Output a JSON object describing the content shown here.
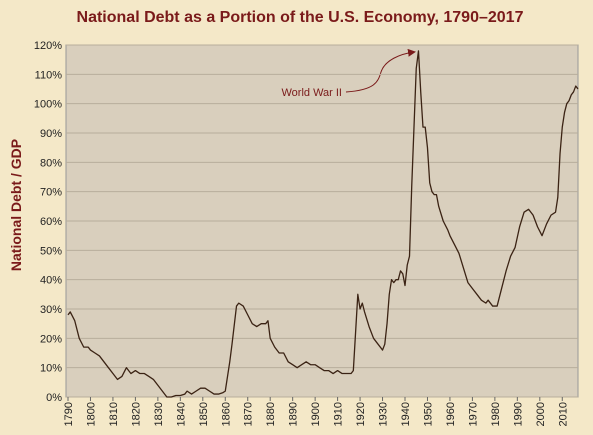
{
  "chart_data": {
    "type": "line",
    "title": "National Debt as a Portion of the U.S. Economy, 1790–2017",
    "y_label": "National Debt / GDP",
    "annotation": "World War II",
    "color": "#3b2314",
    "grid": true,
    "xlim": [
      1790,
      2017
    ],
    "ylim": [
      0,
      120
    ],
    "xticks": [
      1790,
      1800,
      1810,
      1820,
      1830,
      1840,
      1850,
      1860,
      1870,
      1880,
      1890,
      1900,
      1910,
      1920,
      1930,
      1940,
      1950,
      1960,
      1970,
      1980,
      1990,
      2000,
      2010
    ],
    "yticks": [
      {
        "value": 0,
        "label": "0%"
      },
      {
        "value": 10,
        "label": "10%"
      },
      {
        "value": 20,
        "label": "20%"
      },
      {
        "value": 30,
        "label": "30%"
      },
      {
        "value": 40,
        "label": "40%"
      },
      {
        "value": 50,
        "label": "50%"
      },
      {
        "value": 60,
        "label": "60%"
      },
      {
        "value": 70,
        "label": "70%"
      },
      {
        "value": 80,
        "label": "80%"
      },
      {
        "value": 90,
        "label": "90%"
      },
      {
        "value": 100,
        "label": "100%"
      },
      {
        "value": 110,
        "label": "110%"
      },
      {
        "value": 120,
        "label": "120%"
      }
    ],
    "x": [
      1790,
      1791,
      1793,
      1795,
      1797,
      1799,
      1800,
      1802,
      1804,
      1806,
      1808,
      1810,
      1812,
      1814,
      1816,
      1817,
      1818,
      1820,
      1822,
      1824,
      1826,
      1828,
      1830,
      1832,
      1834,
      1836,
      1838,
      1840,
      1842,
      1843,
      1845,
      1847,
      1849,
      1851,
      1853,
      1855,
      1857,
      1859,
      1860,
      1862,
      1863,
      1865,
      1866,
      1868,
      1870,
      1872,
      1874,
      1876,
      1878,
      1879,
      1880,
      1882,
      1884,
      1886,
      1888,
      1890,
      1892,
      1894,
      1896,
      1898,
      1900,
      1902,
      1904,
      1906,
      1908,
      1910,
      1912,
      1914,
      1916,
      1917,
      1918,
      1919,
      1920,
      1921,
      1922,
      1924,
      1926,
      1928,
      1930,
      1931,
      1932,
      1933,
      1934,
      1935,
      1936,
      1937,
      1938,
      1939,
      1940,
      1941,
      1942,
      1943,
      1944,
      1945,
      1946,
      1947,
      1948,
      1949,
      1950,
      1951,
      1952,
      1953,
      1954,
      1955,
      1957,
      1959,
      1960,
      1962,
      1964,
      1966,
      1968,
      1970,
      1972,
      1974,
      1976,
      1977,
      1979,
      1981,
      1983,
      1985,
      1987,
      1989,
      1991,
      1993,
      1995,
      1997,
      1999,
      2001,
      2003,
      2005,
      2007,
      2008,
      2009,
      2010,
      2011,
      2012,
      2013,
      2014,
      2015,
      2016,
      2017
    ],
    "values": [
      28,
      29,
      26,
      20,
      17,
      17,
      16,
      15,
      14,
      12,
      10,
      8,
      6,
      7,
      10,
      9,
      8,
      9,
      8,
      8,
      7,
      6,
      4,
      2,
      0,
      0,
      0.5,
      0.5,
      1,
      2,
      1,
      2,
      3,
      3,
      2,
      1,
      1,
      1.5,
      2,
      12,
      18,
      31,
      32,
      31,
      28,
      25,
      24,
      25,
      25,
      26,
      20,
      17,
      15,
      15,
      12,
      11,
      10,
      11,
      12,
      11,
      11,
      10,
      9,
      9,
      8,
      9,
      8,
      8,
      8,
      9,
      22,
      35,
      30,
      32,
      29,
      24,
      20,
      18,
      16,
      18,
      25,
      35,
      40,
      39,
      40,
      40,
      43,
      42,
      38,
      45,
      48,
      72,
      92,
      112,
      118,
      104,
      92,
      92,
      85,
      73,
      70,
      69,
      69,
      65,
      60,
      57,
      55,
      52,
      49,
      44,
      39,
      37,
      35,
      33,
      32,
      33,
      31,
      31,
      37,
      43,
      48,
      51,
      58,
      63,
      64,
      62,
      58,
      55,
      59,
      62,
      63,
      68,
      83,
      92,
      97,
      100,
      101,
      103,
      104,
      106,
      105
    ]
  }
}
